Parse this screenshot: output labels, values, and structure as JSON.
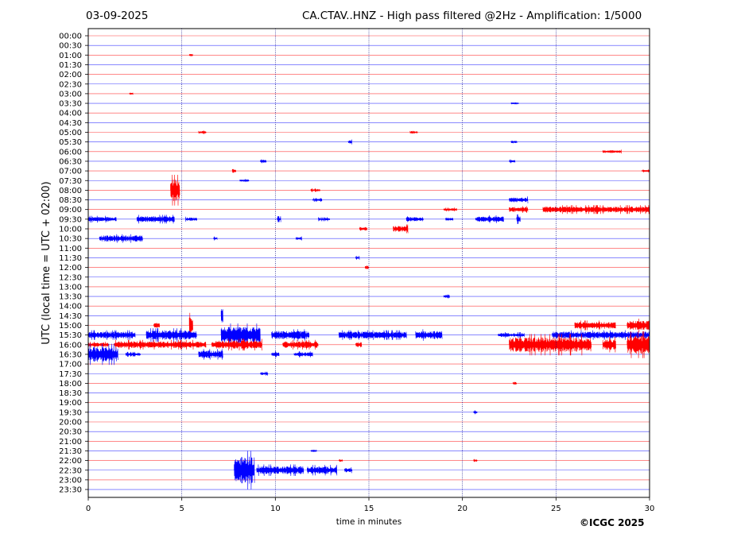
{
  "header": {
    "date": "03-09-2025",
    "title": "CA.CTAV..HNZ - High pass filtered @2Hz - Amplification: 1/5000"
  },
  "credit": "©ICGC 2025",
  "colors": {
    "red_trace": "#ff0000",
    "blue_trace": "#0000ff",
    "grid": "#000080"
  },
  "chart_data": {
    "type": "line",
    "xlabel": "time in minutes",
    "ylabel": "UTC (local time = UTC + 02:00)",
    "xlim": [
      0,
      30
    ],
    "xticks": [
      "0",
      "5",
      "10",
      "15",
      "20",
      "25",
      "30"
    ],
    "vertical_gridlines_at": [
      5,
      10,
      15,
      20,
      25
    ],
    "rows": [
      "00:00",
      "00:30",
      "01:00",
      "01:30",
      "02:00",
      "02:30",
      "03:00",
      "03:30",
      "04:00",
      "04:30",
      "05:00",
      "05:30",
      "06:00",
      "06:30",
      "07:00",
      "07:30",
      "08:00",
      "08:30",
      "09:00",
      "09:30",
      "10:00",
      "10:30",
      "11:00",
      "11:30",
      "12:00",
      "12:30",
      "13:00",
      "13:30",
      "14:00",
      "14:30",
      "15:00",
      "15:30",
      "16:00",
      "16:30",
      "17:00",
      "17:30",
      "18:00",
      "18:30",
      "19:00",
      "19:30",
      "20:00",
      "20:30",
      "21:00",
      "21:30",
      "22:00",
      "22:30",
      "23:00",
      "23:30"
    ],
    "row_colors": [
      "red",
      "blue"
    ],
    "events": [
      {
        "row": "01:00",
        "start": 5.4,
        "end": 5.6,
        "amp": 0.15
      },
      {
        "row": "03:00",
        "start": 2.2,
        "end": 2.4,
        "amp": 0.15
      },
      {
        "row": "03:30",
        "start": 22.6,
        "end": 23.0,
        "amp": 0.15
      },
      {
        "row": "05:00",
        "start": 5.9,
        "end": 6.3,
        "amp": 0.2
      },
      {
        "row": "05:00",
        "start": 17.2,
        "end": 17.6,
        "amp": 0.2
      },
      {
        "row": "05:30",
        "start": 13.9,
        "end": 14.1,
        "amp": 0.25
      },
      {
        "row": "05:30",
        "start": 22.6,
        "end": 22.9,
        "amp": 0.2
      },
      {
        "row": "06:00",
        "start": 27.5,
        "end": 28.5,
        "amp": 0.2
      },
      {
        "row": "06:30",
        "start": 9.2,
        "end": 9.5,
        "amp": 0.2
      },
      {
        "row": "06:30",
        "start": 22.5,
        "end": 22.8,
        "amp": 0.2
      },
      {
        "row": "07:00",
        "start": 7.7,
        "end": 7.9,
        "amp": 0.3
      },
      {
        "row": "07:00",
        "start": 29.6,
        "end": 30.0,
        "amp": 0.15
      },
      {
        "row": "07:30",
        "start": 8.1,
        "end": 8.6,
        "amp": 0.15
      },
      {
        "row": "08:00",
        "start": 4.4,
        "end": 4.9,
        "amp": 1.6
      },
      {
        "row": "08:00",
        "start": 11.9,
        "end": 12.4,
        "amp": 0.2
      },
      {
        "row": "08:30",
        "start": 12.0,
        "end": 12.5,
        "amp": 0.2
      },
      {
        "row": "08:30",
        "start": 22.5,
        "end": 23.5,
        "amp": 0.35
      },
      {
        "row": "09:00",
        "start": 19.0,
        "end": 19.7,
        "amp": 0.2
      },
      {
        "row": "09:00",
        "start": 22.5,
        "end": 23.5,
        "amp": 0.35
      },
      {
        "row": "09:00",
        "start": 24.3,
        "end": 30.0,
        "amp": 0.45
      },
      {
        "row": "09:30",
        "start": 0.0,
        "end": 1.5,
        "amp": 0.35
      },
      {
        "row": "09:30",
        "start": 2.6,
        "end": 4.6,
        "amp": 0.45
      },
      {
        "row": "09:30",
        "start": 5.2,
        "end": 5.8,
        "amp": 0.25
      },
      {
        "row": "09:30",
        "start": 10.1,
        "end": 10.3,
        "amp": 0.3
      },
      {
        "row": "09:30",
        "start": 12.3,
        "end": 12.9,
        "amp": 0.2
      },
      {
        "row": "09:30",
        "start": 17.0,
        "end": 17.9,
        "amp": 0.3
      },
      {
        "row": "09:30",
        "start": 19.1,
        "end": 19.5,
        "amp": 0.25
      },
      {
        "row": "09:30",
        "start": 20.7,
        "end": 22.2,
        "amp": 0.4
      },
      {
        "row": "09:30",
        "start": 22.9,
        "end": 23.1,
        "amp": 0.5
      },
      {
        "row": "10:00",
        "start": 14.5,
        "end": 14.9,
        "amp": 0.3
      },
      {
        "row": "10:00",
        "start": 16.3,
        "end": 17.1,
        "amp": 0.45
      },
      {
        "row": "10:30",
        "start": 0.6,
        "end": 2.9,
        "amp": 0.45
      },
      {
        "row": "10:30",
        "start": 6.7,
        "end": 6.9,
        "amp": 0.2
      },
      {
        "row": "10:30",
        "start": 11.1,
        "end": 11.4,
        "amp": 0.2
      },
      {
        "row": "11:30",
        "start": 14.3,
        "end": 14.5,
        "amp": 0.2
      },
      {
        "row": "12:00",
        "start": 14.8,
        "end": 15.0,
        "amp": 0.3
      },
      {
        "row": "13:30",
        "start": 19.0,
        "end": 19.3,
        "amp": 0.3
      },
      {
        "row": "14:30",
        "start": 7.1,
        "end": 7.2,
        "amp": 1.0
      },
      {
        "row": "15:00",
        "start": 3.5,
        "end": 3.8,
        "amp": 0.4
      },
      {
        "row": "15:00",
        "start": 5.4,
        "end": 5.6,
        "amp": 1.3
      },
      {
        "row": "15:00",
        "start": 26.0,
        "end": 28.2,
        "amp": 0.5
      },
      {
        "row": "15:00",
        "start": 28.8,
        "end": 30.0,
        "amp": 0.7
      },
      {
        "row": "15:30",
        "start": 0.0,
        "end": 2.5,
        "amp": 0.5
      },
      {
        "row": "15:30",
        "start": 3.1,
        "end": 5.8,
        "amp": 0.7
      },
      {
        "row": "15:30",
        "start": 7.1,
        "end": 9.2,
        "amp": 1.2
      },
      {
        "row": "15:30",
        "start": 9.8,
        "end": 11.8,
        "amp": 0.6
      },
      {
        "row": "15:30",
        "start": 13.4,
        "end": 17.0,
        "amp": 0.5
      },
      {
        "row": "15:30",
        "start": 17.5,
        "end": 18.9,
        "amp": 0.6
      },
      {
        "row": "15:30",
        "start": 21.9,
        "end": 23.3,
        "amp": 0.3
      },
      {
        "row": "15:30",
        "start": 24.8,
        "end": 30.0,
        "amp": 0.5
      },
      {
        "row": "16:00",
        "start": 0.0,
        "end": 1.1,
        "amp": 0.3
      },
      {
        "row": "16:00",
        "start": 1.4,
        "end": 6.3,
        "amp": 0.5
      },
      {
        "row": "16:00",
        "start": 6.6,
        "end": 9.3,
        "amp": 0.6
      },
      {
        "row": "16:00",
        "start": 10.4,
        "end": 12.3,
        "amp": 0.5
      },
      {
        "row": "16:00",
        "start": 14.3,
        "end": 14.6,
        "amp": 0.4
      },
      {
        "row": "16:00",
        "start": 22.5,
        "end": 26.9,
        "amp": 1.1
      },
      {
        "row": "16:00",
        "start": 27.5,
        "end": 28.2,
        "amp": 0.8
      },
      {
        "row": "16:00",
        "start": 28.8,
        "end": 30.0,
        "amp": 1.4
      },
      {
        "row": "16:30",
        "start": 0.0,
        "end": 1.6,
        "amp": 1.1
      },
      {
        "row": "16:30",
        "start": 2.0,
        "end": 2.8,
        "amp": 0.25
      },
      {
        "row": "16:30",
        "start": 5.9,
        "end": 7.2,
        "amp": 0.55
      },
      {
        "row": "16:30",
        "start": 9.8,
        "end": 10.2,
        "amp": 0.35
      },
      {
        "row": "16:30",
        "start": 11.0,
        "end": 12.0,
        "amp": 0.3
      },
      {
        "row": "17:30",
        "start": 9.2,
        "end": 9.6,
        "amp": 0.2
      },
      {
        "row": "18:00",
        "start": 22.7,
        "end": 22.9,
        "amp": 0.2
      },
      {
        "row": "19:30",
        "start": 20.6,
        "end": 20.8,
        "amp": 0.2
      },
      {
        "row": "21:30",
        "start": 11.9,
        "end": 12.2,
        "amp": 0.15
      },
      {
        "row": "22:00",
        "start": 13.4,
        "end": 13.6,
        "amp": 0.2
      },
      {
        "row": "22:00",
        "start": 20.6,
        "end": 20.8,
        "amp": 0.15
      },
      {
        "row": "22:30",
        "start": 7.8,
        "end": 8.9,
        "amp": 2.0
      },
      {
        "row": "22:30",
        "start": 9.0,
        "end": 11.5,
        "amp": 0.6
      },
      {
        "row": "22:30",
        "start": 11.7,
        "end": 13.3,
        "amp": 0.55
      },
      {
        "row": "22:30",
        "start": 13.7,
        "end": 14.1,
        "amp": 0.3
      }
    ]
  }
}
